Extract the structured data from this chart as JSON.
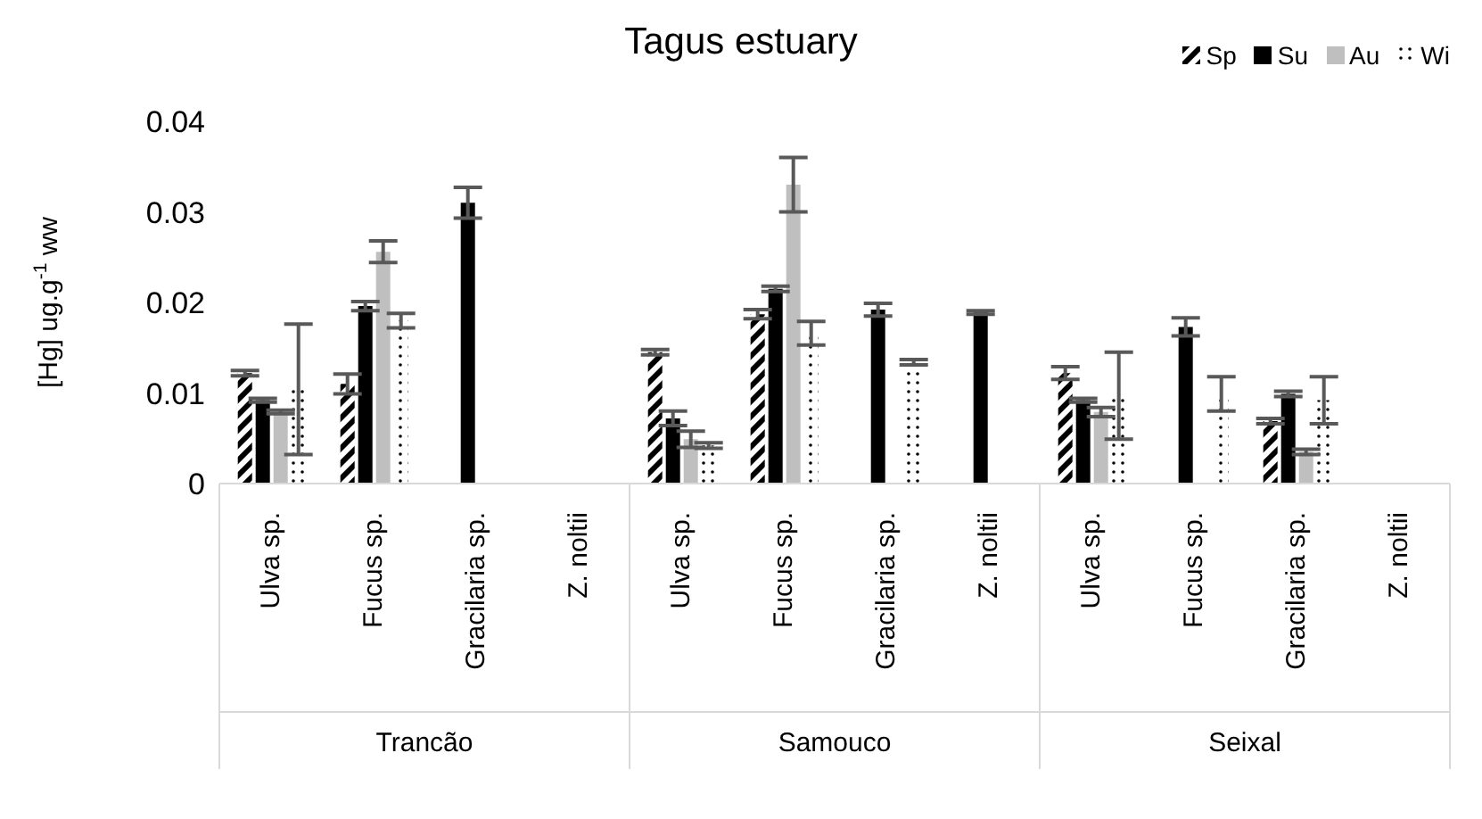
{
  "chart_data": {
    "type": "bar",
    "title": "Tagus estuary",
    "ylabel": "[Hg] ug.g$^{-1}$ ww",
    "categories": [
      "Ulva sp.",
      "Fucus sp.",
      "Gracilaria sp.",
      "Z. noltii",
      "Ulva sp.",
      "Fucus sp.",
      "Gracilaria sp.",
      "Z. noltii",
      "Ulva sp.",
      "Fucus sp.",
      "Gracilaria sp.",
      "Z. noltii"
    ],
    "series": [
      {
        "name": "Sp",
        "color": "#000000",
        "values": [
          0.0122,
          0.011,
          null,
          null,
          0.0145,
          0.0187,
          null,
          null,
          0.0122,
          null,
          0.0069,
          null
        ],
        "errors": [
          0.0003,
          0.0011,
          null,
          null,
          0.0003,
          0.0005,
          null,
          null,
          0.0007,
          null,
          0.0003,
          null
        ]
      },
      {
        "name": "Su",
        "color": "#000000",
        "values": [
          0.0092,
          0.0196,
          0.031,
          null,
          0.0072,
          0.0215,
          0.0192,
          0.0189,
          0.0092,
          0.0173,
          0.0099,
          null
        ],
        "errors": [
          0.0002,
          0.0005,
          0.0017,
          null,
          0.0008,
          0.0003,
          0.0007,
          0.0002,
          0.0002,
          0.001,
          0.0003,
          null
        ]
      },
      {
        "name": "Au",
        "color": "#bfbfbf",
        "values": [
          0.0079,
          0.0256,
          null,
          null,
          0.0049,
          0.033,
          null,
          null,
          0.0079,
          null,
          0.0035,
          null
        ],
        "errors": [
          0.0002,
          0.0012,
          null,
          null,
          0.0009,
          0.003,
          null,
          null,
          0.0005,
          null,
          0.0003,
          null
        ]
      },
      {
        "name": "Wi",
        "color": "#000000",
        "values": [
          0.0104,
          0.018,
          null,
          null,
          0.0042,
          0.0166,
          0.0134,
          null,
          0.0097,
          0.0099,
          0.0092,
          null
        ],
        "errors": [
          0.0072,
          0.0008,
          null,
          null,
          0.0003,
          0.0013,
          0.0003,
          null,
          0.0048,
          0.0019,
          0.0026,
          null
        ]
      }
    ],
    "annotations": [
      "Trancão",
      "Samouco",
      "Seixal"
    ],
    "ylim": [
      0,
      0.04
    ],
    "yticks": [
      0,
      0.01,
      0.02,
      0.03,
      0.04
    ],
    "grid": false,
    "legend": "top right"
  }
}
